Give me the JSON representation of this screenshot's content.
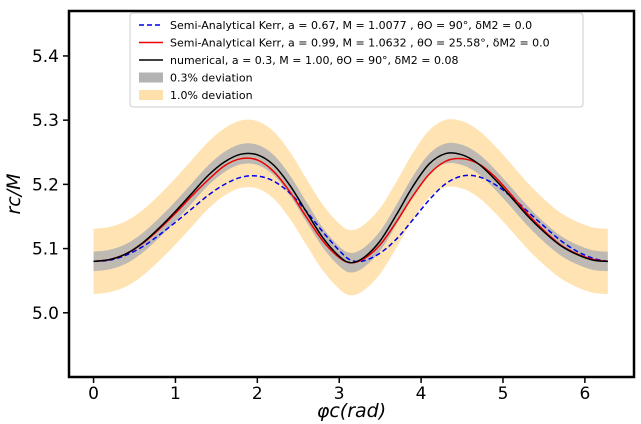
{
  "chart_data": {
    "type": "line",
    "title": "",
    "xlabel": "φc(rad)",
    "ylabel": "rc/M",
    "xlim": [
      -0.3,
      6.6
    ],
    "ylim": [
      4.9,
      5.47
    ],
    "xticks": [
      0,
      1,
      2,
      3,
      4,
      5,
      6
    ],
    "xtick_labels": [
      "0",
      "1",
      "2",
      "3",
      "4",
      "5",
      "6"
    ],
    "yticks": [
      5.0,
      5.1,
      5.2,
      5.3,
      5.4
    ],
    "ytick_labels": [
      "5.0",
      "5.1",
      "5.2",
      "5.3",
      "5.4"
    ],
    "grid": false,
    "legend_position": "top-center",
    "x": [
      0,
      0.2,
      0.4,
      0.6,
      0.8,
      1.0,
      1.2,
      1.4,
      1.6,
      1.8,
      2.0,
      2.2,
      2.4,
      2.6,
      2.8,
      3.0,
      3.14,
      3.3,
      3.5,
      3.7,
      3.9,
      4.1,
      4.3,
      4.5,
      4.7,
      4.9,
      5.1,
      5.3,
      5.5,
      5.7,
      5.9,
      6.1,
      6.28
    ],
    "series": [
      {
        "name": "Semi-Analytical Kerr, a = 0.67, M = 1.0077 , θO = 90°,  δM2 = 0.0",
        "style": "dashed",
        "color": "#0000ee",
        "values": [
          5.08,
          5.082,
          5.09,
          5.103,
          5.121,
          5.141,
          5.162,
          5.183,
          5.2,
          5.211,
          5.213,
          5.205,
          5.186,
          5.158,
          5.126,
          5.097,
          5.082,
          5.081,
          5.093,
          5.115,
          5.145,
          5.176,
          5.201,
          5.213,
          5.212,
          5.2,
          5.181,
          5.158,
          5.135,
          5.113,
          5.096,
          5.085,
          5.08
        ]
      },
      {
        "name": "Semi-Analytical Kerr, a = 0.99, M = 1.0632 , θO = 25.58°,  δM2 = 0.0",
        "style": "solid",
        "color": "#ee0000",
        "values": [
          5.08,
          5.083,
          5.092,
          5.108,
          5.13,
          5.155,
          5.182,
          5.207,
          5.229,
          5.24,
          5.238,
          5.22,
          5.188,
          5.149,
          5.112,
          5.086,
          5.078,
          5.084,
          5.106,
          5.142,
          5.182,
          5.216,
          5.236,
          5.24,
          5.232,
          5.212,
          5.184,
          5.154,
          5.128,
          5.106,
          5.092,
          5.083,
          5.08
        ]
      },
      {
        "name": "numerical, a = 0.3, M = 1.00, θO = 90°,  δM2 = 0.08",
        "style": "solid",
        "color": "#000000",
        "values": [
          5.08,
          5.083,
          5.092,
          5.109,
          5.132,
          5.158,
          5.186,
          5.214,
          5.235,
          5.247,
          5.246,
          5.23,
          5.198,
          5.157,
          5.117,
          5.088,
          5.078,
          5.086,
          5.112,
          5.153,
          5.197,
          5.232,
          5.248,
          5.246,
          5.232,
          5.208,
          5.18,
          5.151,
          5.126,
          5.105,
          5.091,
          5.082,
          5.08
        ]
      }
    ],
    "bands": [
      {
        "name": "0.3% deviation",
        "color": "#b3b3b3",
        "opacity": 0.85,
        "relative_width": 0.003,
        "around": "numerical, a = 0.3, M = 1.00, θO = 90°,  δM2 = 0.08"
      },
      {
        "name": "1.0% deviation",
        "color": "#ffe0aa",
        "opacity": 0.9,
        "relative_width": 0.01,
        "around": "numerical, a = 0.3, M = 1.00, θO = 90°,  δM2 = 0.08"
      }
    ]
  }
}
